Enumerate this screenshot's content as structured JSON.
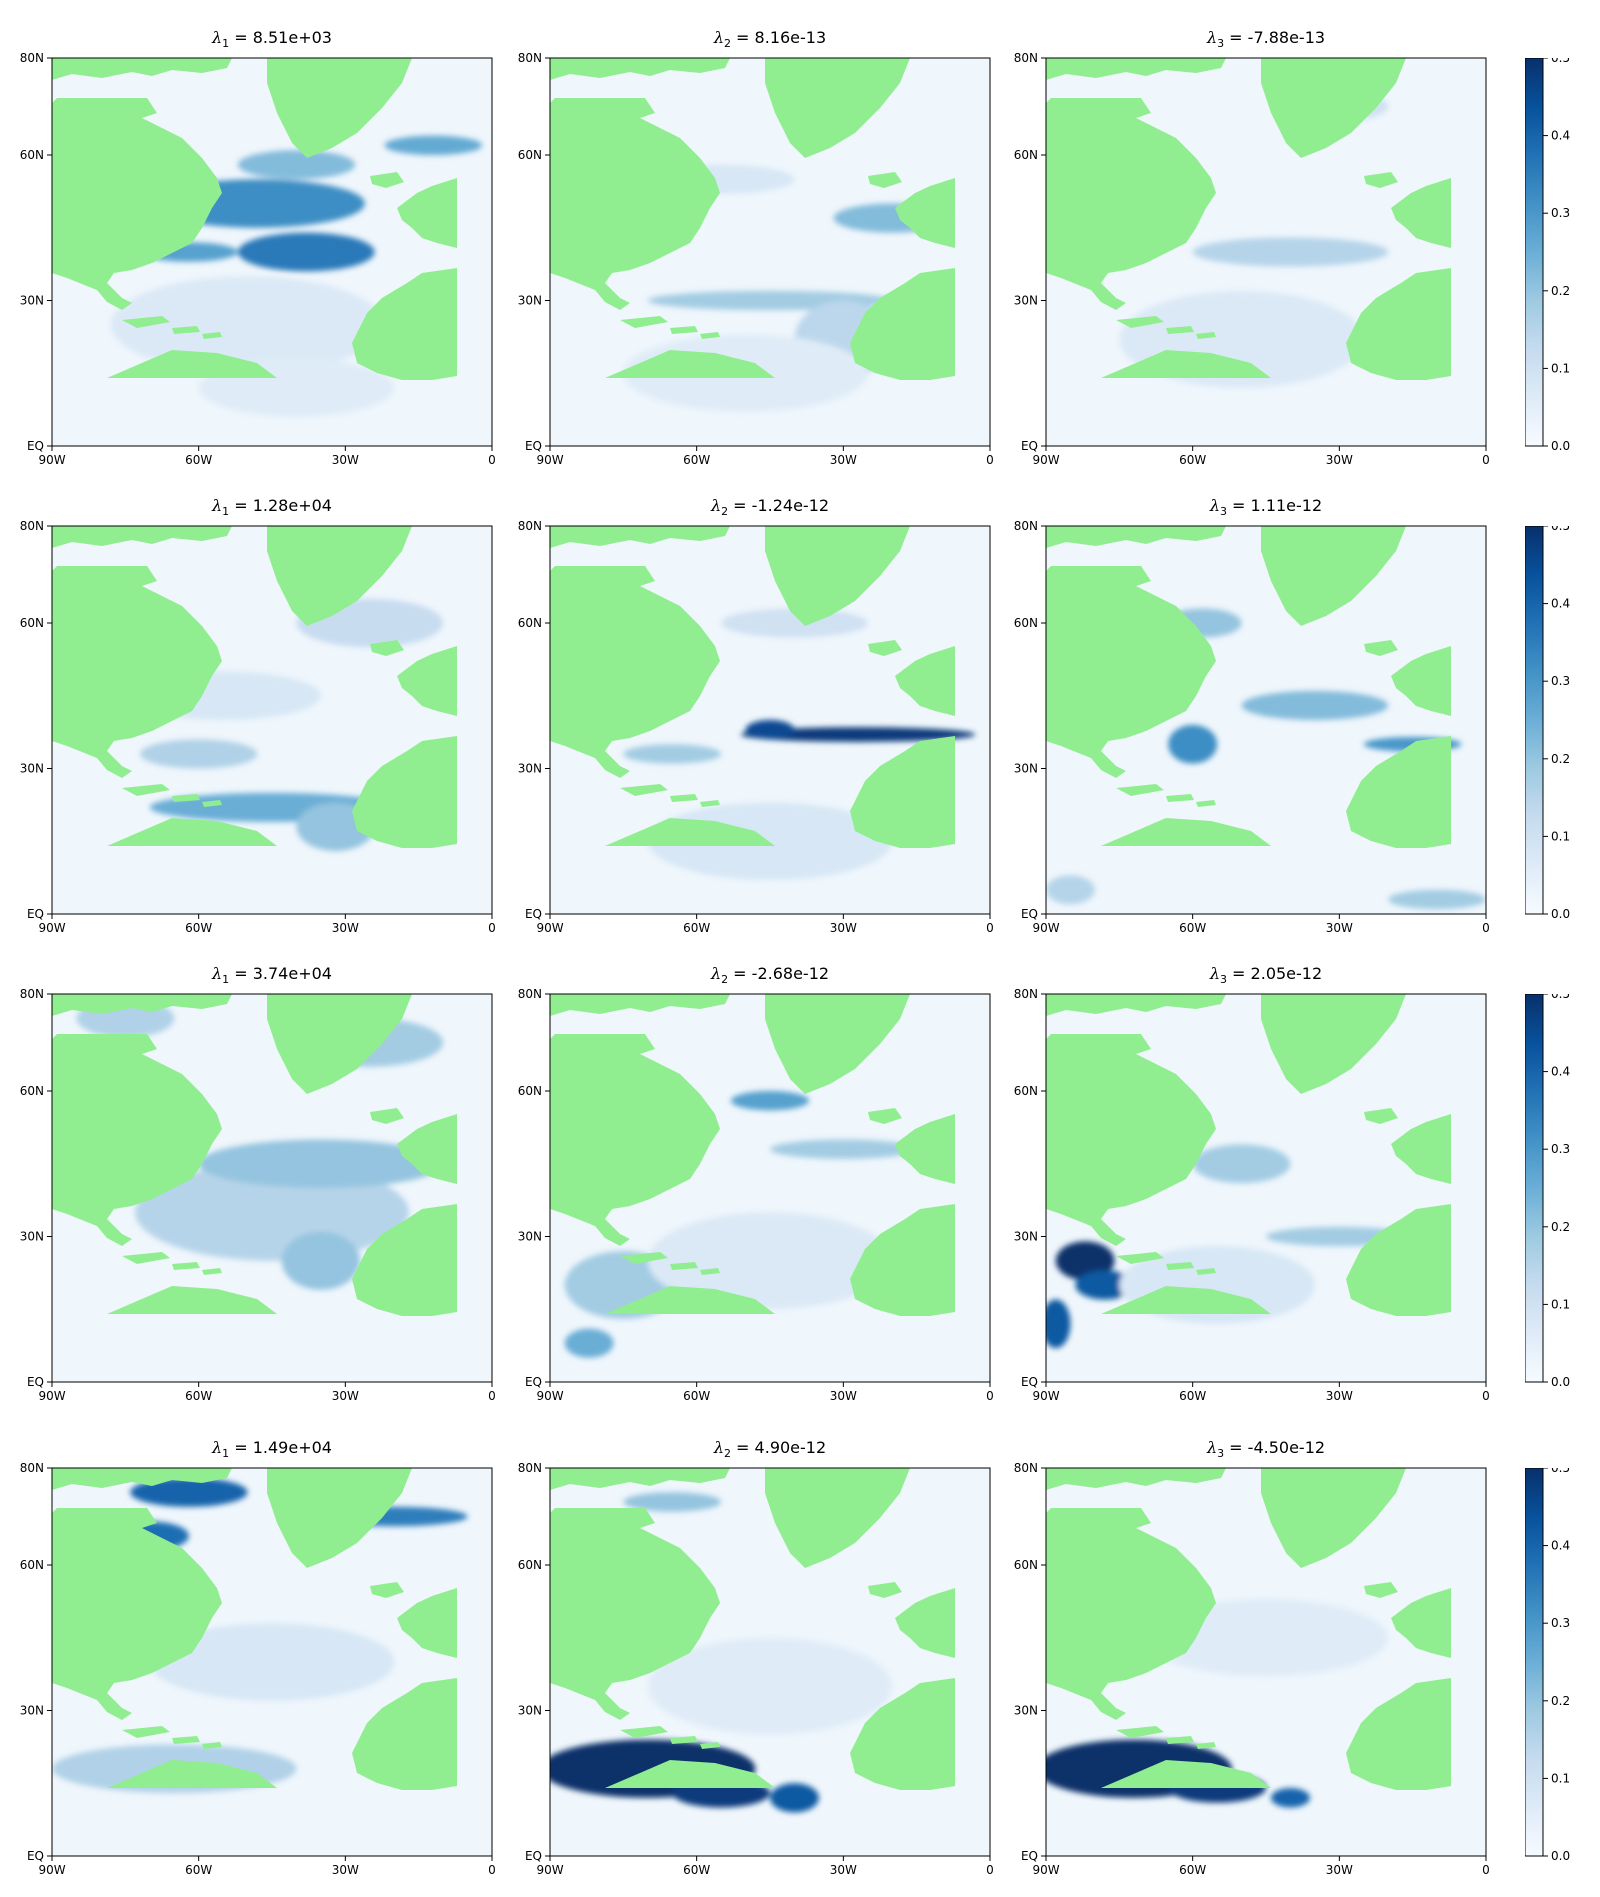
{
  "chart_data": {
    "type": "heatmap",
    "layout": "4 rows x 3 columns of maps, one colorbar per row",
    "colormap": "Blues",
    "land_color": "#90ee90",
    "value_range": [
      0.0,
      0.5
    ],
    "colorbar_ticks": [
      "0.0",
      "0.1",
      "0.2",
      "0.3",
      "0.4",
      "0.5"
    ],
    "x_ticks": [
      "90W",
      "60W",
      "30W",
      "0"
    ],
    "y_ticks": [
      "EQ",
      "30N",
      "60N",
      "80N"
    ],
    "lon_range": [
      -90,
      0
    ],
    "lat_range": [
      0,
      80
    ],
    "rows": [
      {
        "panels": [
          {
            "symbol": "λ",
            "index": "1",
            "value": "8.51e+03",
            "features": [
              {
                "lon": -48,
                "lat": 50,
                "rx": 22,
                "ry": 5,
                "v": 0.32
              },
              {
                "lon": -38,
                "lat": 40,
                "rx": 14,
                "ry": 4,
                "v": 0.36
              },
              {
                "lon": -62,
                "lat": 40,
                "rx": 10,
                "ry": 2,
                "v": 0.28
              },
              {
                "lon": -40,
                "lat": 58,
                "rx": 12,
                "ry": 3,
                "v": 0.22
              },
              {
                "lon": -12,
                "lat": 62,
                "rx": 10,
                "ry": 2,
                "v": 0.26
              },
              {
                "lon": -50,
                "lat": 25,
                "rx": 28,
                "ry": 10,
                "v": 0.07
              },
              {
                "lon": -40,
                "lat": 12,
                "rx": 20,
                "ry": 6,
                "v": 0.06
              }
            ]
          },
          {
            "symbol": "λ",
            "index": "2",
            "value": "8.16e-13",
            "features": [
              {
                "lon": -20,
                "lat": 47,
                "rx": 12,
                "ry": 3,
                "v": 0.22
              },
              {
                "lon": -45,
                "lat": 30,
                "rx": 25,
                "ry": 2,
                "v": 0.18
              },
              {
                "lon": -30,
                "lat": 22,
                "rx": 10,
                "ry": 8,
                "v": 0.14
              },
              {
                "lon": -55,
                "lat": 55,
                "rx": 15,
                "ry": 3,
                "v": 0.08
              },
              {
                "lon": -50,
                "lat": 15,
                "rx": 25,
                "ry": 8,
                "v": 0.06
              }
            ]
          },
          {
            "symbol": "λ",
            "index": "3",
            "value": "-7.88e-13",
            "features": [
              {
                "lon": -40,
                "lat": 40,
                "rx": 20,
                "ry": 3,
                "v": 0.15
              },
              {
                "lon": -75,
                "lat": 60,
                "rx": 10,
                "ry": 5,
                "v": 0.14
              },
              {
                "lon": -30,
                "lat": 70,
                "rx": 10,
                "ry": 3,
                "v": 0.1
              },
              {
                "lon": -50,
                "lat": 22,
                "rx": 25,
                "ry": 10,
                "v": 0.07
              }
            ]
          }
        ]
      },
      {
        "panels": [
          {
            "symbol": "λ",
            "index": "1",
            "value": "1.28e+04",
            "features": [
              {
                "lon": -45,
                "lat": 22,
                "rx": 25,
                "ry": 3,
                "v": 0.25
              },
              {
                "lon": -32,
                "lat": 18,
                "rx": 8,
                "ry": 5,
                "v": 0.2
              },
              {
                "lon": -60,
                "lat": 33,
                "rx": 12,
                "ry": 3,
                "v": 0.16
              },
              {
                "lon": -25,
                "lat": 60,
                "rx": 15,
                "ry": 5,
                "v": 0.12
              },
              {
                "lon": -55,
                "lat": 45,
                "rx": 20,
                "ry": 5,
                "v": 0.08
              }
            ]
          },
          {
            "symbol": "λ",
            "index": "2",
            "value": "-1.24e-12",
            "features": [
              {
                "lon": -27,
                "lat": 37,
                "rx": 24,
                "ry": 1.5,
                "v": 0.48
              },
              {
                "lon": -45,
                "lat": 38,
                "rx": 5,
                "ry": 2,
                "v": 0.45
              },
              {
                "lon": -65,
                "lat": 33,
                "rx": 10,
                "ry": 2,
                "v": 0.18
              },
              {
                "lon": -40,
                "lat": 60,
                "rx": 15,
                "ry": 3,
                "v": 0.1
              },
              {
                "lon": -45,
                "lat": 15,
                "rx": 25,
                "ry": 8,
                "v": 0.08
              }
            ]
          },
          {
            "symbol": "λ",
            "index": "3",
            "value": "1.11e-12",
            "features": [
              {
                "lon": -35,
                "lat": 43,
                "rx": 15,
                "ry": 3,
                "v": 0.22
              },
              {
                "lon": -60,
                "lat": 35,
                "rx": 5,
                "ry": 4,
                "v": 0.32
              },
              {
                "lon": -15,
                "lat": 35,
                "rx": 10,
                "ry": 1.5,
                "v": 0.3
              },
              {
                "lon": -58,
                "lat": 60,
                "rx": 8,
                "ry": 3,
                "v": 0.2
              },
              {
                "lon": -10,
                "lat": 3,
                "rx": 10,
                "ry": 2,
                "v": 0.18
              },
              {
                "lon": -85,
                "lat": 5,
                "rx": 5,
                "ry": 3,
                "v": 0.15
              }
            ]
          }
        ]
      },
      {
        "panels": [
          {
            "symbol": "λ",
            "index": "1",
            "value": "3.74e+04",
            "features": [
              {
                "lon": -45,
                "lat": 35,
                "rx": 28,
                "ry": 10,
                "v": 0.15
              },
              {
                "lon": -35,
                "lat": 45,
                "rx": 25,
                "ry": 5,
                "v": 0.2
              },
              {
                "lon": -25,
                "lat": 70,
                "rx": 15,
                "ry": 5,
                "v": 0.18
              },
              {
                "lon": -75,
                "lat": 75,
                "rx": 10,
                "ry": 4,
                "v": 0.16
              },
              {
                "lon": -35,
                "lat": 25,
                "rx": 8,
                "ry": 6,
                "v": 0.2
              }
            ]
          },
          {
            "symbol": "λ",
            "index": "2",
            "value": "-2.68e-12",
            "features": [
              {
                "lon": -75,
                "lat": 20,
                "rx": 12,
                "ry": 7,
                "v": 0.18
              },
              {
                "lon": -82,
                "lat": 8,
                "rx": 5,
                "ry": 3,
                "v": 0.25
              },
              {
                "lon": -45,
                "lat": 58,
                "rx": 8,
                "ry": 2,
                "v": 0.28
              },
              {
                "lon": -30,
                "lat": 48,
                "rx": 15,
                "ry": 2,
                "v": 0.18
              },
              {
                "lon": -45,
                "lat": 25,
                "rx": 25,
                "ry": 10,
                "v": 0.07
              }
            ]
          },
          {
            "symbol": "λ",
            "index": "3",
            "value": "2.05e-12",
            "features": [
              {
                "lon": -82,
                "lat": 25,
                "rx": 6,
                "ry": 4,
                "v": 0.5
              },
              {
                "lon": -78,
                "lat": 20,
                "rx": 6,
                "ry": 3,
                "v": 0.42
              },
              {
                "lon": -88,
                "lat": 12,
                "rx": 3,
                "ry": 5,
                "v": 0.42
              },
              {
                "lon": -30,
                "lat": 30,
                "rx": 15,
                "ry": 2,
                "v": 0.18
              },
              {
                "lon": -50,
                "lat": 45,
                "rx": 10,
                "ry": 4,
                "v": 0.18
              },
              {
                "lon": -55,
                "lat": 20,
                "rx": 20,
                "ry": 8,
                "v": 0.08
              }
            ]
          }
        ]
      },
      {
        "panels": [
          {
            "symbol": "λ",
            "index": "1",
            "value": "1.49e+04",
            "features": [
              {
                "lon": -62,
                "lat": 75,
                "rx": 12,
                "ry": 3,
                "v": 0.4
              },
              {
                "lon": -70,
                "lat": 66,
                "rx": 8,
                "ry": 3,
                "v": 0.38
              },
              {
                "lon": -20,
                "lat": 70,
                "rx": 15,
                "ry": 2,
                "v": 0.35
              },
              {
                "lon": -65,
                "lat": 18,
                "rx": 25,
                "ry": 5,
                "v": 0.16
              },
              {
                "lon": -45,
                "lat": 40,
                "rx": 25,
                "ry": 8,
                "v": 0.08
              }
            ]
          },
          {
            "symbol": "λ",
            "index": "2",
            "value": "4.90e-12",
            "features": [
              {
                "lon": -70,
                "lat": 18,
                "rx": 22,
                "ry": 6,
                "v": 0.5
              },
              {
                "lon": -55,
                "lat": 13,
                "rx": 10,
                "ry": 3,
                "v": 0.48
              },
              {
                "lon": -40,
                "lat": 12,
                "rx": 5,
                "ry": 3,
                "v": 0.42
              },
              {
                "lon": -65,
                "lat": 73,
                "rx": 10,
                "ry": 2,
                "v": 0.2
              },
              {
                "lon": -45,
                "lat": 35,
                "rx": 25,
                "ry": 10,
                "v": 0.06
              }
            ]
          },
          {
            "symbol": "λ",
            "index": "3",
            "value": "-4.50e-12",
            "features": [
              {
                "lon": -72,
                "lat": 18,
                "rx": 20,
                "ry": 6,
                "v": 0.5
              },
              {
                "lon": -55,
                "lat": 14,
                "rx": 10,
                "ry": 3,
                "v": 0.48
              },
              {
                "lon": -40,
                "lat": 12,
                "rx": 4,
                "ry": 2,
                "v": 0.4
              },
              {
                "lon": -45,
                "lat": 45,
                "rx": 25,
                "ry": 8,
                "v": 0.06
              }
            ]
          }
        ]
      }
    ]
  }
}
